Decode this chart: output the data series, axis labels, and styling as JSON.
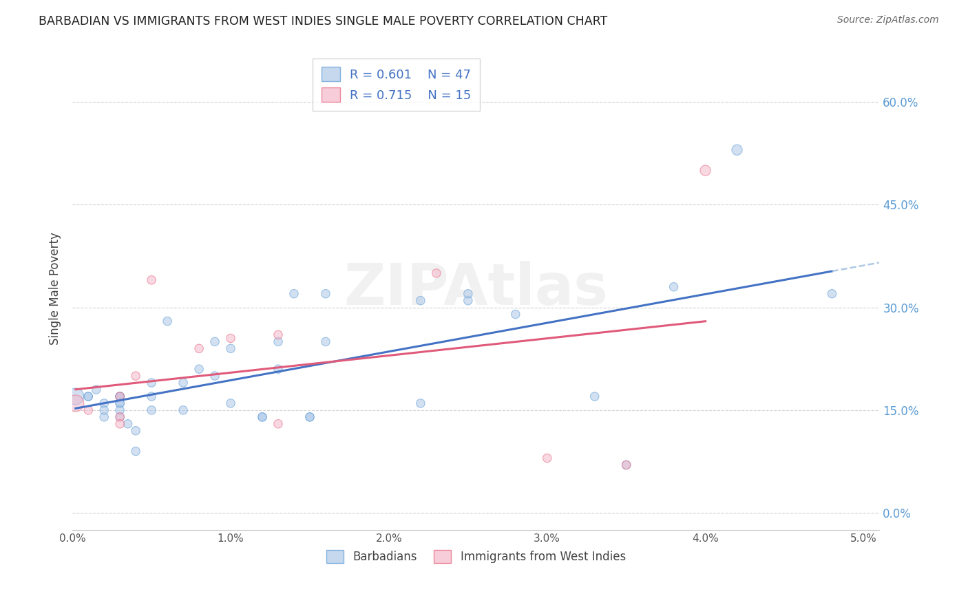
{
  "title": "BARBADIAN VS IMMIGRANTS FROM WEST INDIES SINGLE MALE POVERTY CORRELATION CHART",
  "source": "Source: ZipAtlas.com",
  "ylabel": "Single Male Poverty",
  "xlim": [
    0.0,
    0.051
  ],
  "ylim": [
    -0.025,
    0.68
  ],
  "yticks": [
    0.0,
    0.15,
    0.3,
    0.45,
    0.6
  ],
  "xticks": [
    0.0,
    0.01,
    0.02,
    0.03,
    0.04,
    0.05
  ],
  "xtick_labels": [
    "0.0%",
    "1.0%",
    "2.0%",
    "3.0%",
    "4.0%",
    "5.0%"
  ],
  "ytick_right_labels": [
    "0.0%",
    "15.0%",
    "30.0%",
    "45.0%",
    "60.0%"
  ],
  "right_ytick_color": "#5b9bd5",
  "legend_R1": "R = 0.601",
  "legend_N1": "N = 47",
  "legend_R2": "R = 0.715",
  "legend_N2": "N = 15",
  "blue_scatter_color": "#adc8e8",
  "pink_scatter_color": "#f4b8cb",
  "blue_edge_color": "#5b9bd5",
  "pink_edge_color": "#e8627a",
  "blue_line_color": "#4472c4",
  "pink_line_color": "#e05a7a",
  "dashed_line_color": "#a0c0e0",
  "watermark": "ZIPAtlas",
  "barbadians_x": [
    0.0002,
    0.001,
    0.001,
    0.0015,
    0.002,
    0.002,
    0.002,
    0.003,
    0.003,
    0.003,
    0.003,
    0.003,
    0.003,
    0.003,
    0.0035,
    0.004,
    0.004,
    0.005,
    0.005,
    0.005,
    0.006,
    0.007,
    0.007,
    0.008,
    0.009,
    0.009,
    0.01,
    0.01,
    0.012,
    0.012,
    0.013,
    0.013,
    0.014,
    0.015,
    0.015,
    0.016,
    0.016,
    0.022,
    0.022,
    0.025,
    0.025,
    0.028,
    0.033,
    0.035,
    0.038,
    0.042,
    0.048
  ],
  "barbadians_y": [
    0.17,
    0.17,
    0.17,
    0.18,
    0.16,
    0.14,
    0.15,
    0.17,
    0.17,
    0.14,
    0.16,
    0.17,
    0.16,
    0.15,
    0.13,
    0.12,
    0.09,
    0.17,
    0.19,
    0.15,
    0.28,
    0.19,
    0.15,
    0.21,
    0.25,
    0.2,
    0.24,
    0.16,
    0.14,
    0.14,
    0.21,
    0.25,
    0.32,
    0.14,
    0.14,
    0.25,
    0.32,
    0.16,
    0.31,
    0.31,
    0.32,
    0.29,
    0.17,
    0.07,
    0.33,
    0.53,
    0.32
  ],
  "barbadians_sizes": [
    300,
    80,
    80,
    80,
    80,
    80,
    80,
    80,
    80,
    80,
    80,
    80,
    80,
    80,
    80,
    80,
    80,
    80,
    80,
    80,
    80,
    80,
    80,
    80,
    80,
    80,
    80,
    80,
    80,
    80,
    80,
    80,
    80,
    80,
    80,
    80,
    80,
    80,
    80,
    80,
    80,
    80,
    80,
    80,
    80,
    120,
    80
  ],
  "westindies_x": [
    0.0002,
    0.001,
    0.003,
    0.003,
    0.003,
    0.004,
    0.005,
    0.008,
    0.01,
    0.013,
    0.013,
    0.023,
    0.03,
    0.035,
    0.04
  ],
  "westindies_y": [
    0.16,
    0.15,
    0.14,
    0.13,
    0.17,
    0.2,
    0.34,
    0.24,
    0.255,
    0.26,
    0.13,
    0.35,
    0.08,
    0.07,
    0.5
  ],
  "westindies_sizes": [
    300,
    80,
    80,
    80,
    80,
    80,
    80,
    80,
    80,
    80,
    80,
    80,
    80,
    80,
    120
  ]
}
